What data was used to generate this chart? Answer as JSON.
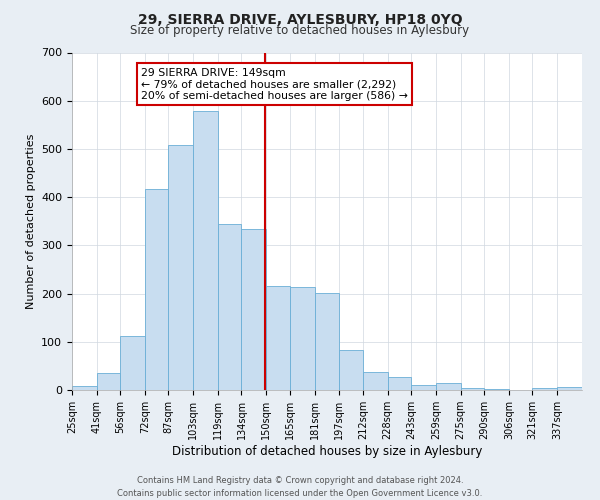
{
  "title": "29, SIERRA DRIVE, AYLESBURY, HP18 0YQ",
  "subtitle": "Size of property relative to detached houses in Aylesbury",
  "xlabel": "Distribution of detached houses by size in Aylesbury",
  "ylabel": "Number of detached properties",
  "footer_line1": "Contains HM Land Registry data © Crown copyright and database right 2024.",
  "footer_line2": "Contains public sector information licensed under the Open Government Licence v3.0.",
  "bin_labels": [
    "25sqm",
    "41sqm",
    "56sqm",
    "72sqm",
    "87sqm",
    "103sqm",
    "119sqm",
    "134sqm",
    "150sqm",
    "165sqm",
    "181sqm",
    "197sqm",
    "212sqm",
    "228sqm",
    "243sqm",
    "259sqm",
    "275sqm",
    "290sqm",
    "306sqm",
    "321sqm",
    "337sqm"
  ],
  "bar_values": [
    8,
    36,
    112,
    416,
    508,
    578,
    345,
    333,
    215,
    213,
    202,
    82,
    38,
    27,
    10,
    14,
    4,
    2,
    0,
    5,
    7
  ],
  "bar_color": "#c8ddf0",
  "bar_edge_color": "#6aaed6",
  "bin_edges": [
    25,
    41,
    56,
    72,
    87,
    103,
    119,
    134,
    150,
    165,
    181,
    197,
    212,
    228,
    243,
    259,
    275,
    290,
    306,
    321,
    337,
    353
  ],
  "vline_x": 149,
  "vline_color": "#cc0000",
  "annotation_title": "29 SIERRA DRIVE: 149sqm",
  "annotation_line1": "← 79% of detached houses are smaller (2,292)",
  "annotation_line2": "20% of semi-detached houses are larger (586) →",
  "annotation_box_color": "#ffffff",
  "annotation_box_edge_color": "#cc0000",
  "ylim": [
    0,
    700
  ],
  "yticks": [
    0,
    100,
    200,
    300,
    400,
    500,
    600,
    700
  ],
  "background_color": "#e8eef4",
  "plot_bg_color": "#ffffff",
  "grid_color": "#d0d8e0"
}
